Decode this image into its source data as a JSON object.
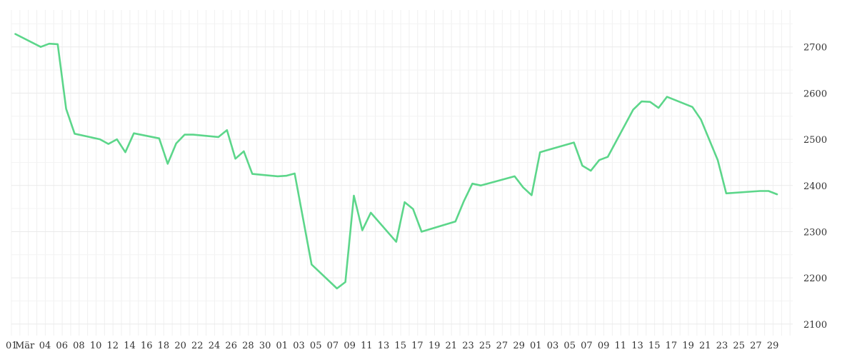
{
  "chart_data": {
    "type": "line",
    "title": "",
    "xlabel": "",
    "ylabel": "",
    "grid": true,
    "x_tick_labels": [
      "01",
      "Mär",
      "04",
      "06",
      "08",
      "10",
      "12",
      "14",
      "16",
      "18",
      "20",
      "22",
      "24",
      "26",
      "28",
      "30",
      "01",
      "03",
      "05",
      "07",
      "09",
      "11",
      "13",
      "15",
      "17",
      "19",
      "21",
      "23",
      "25",
      "27",
      "29",
      "01",
      "03",
      "05",
      "07",
      "09",
      "11",
      "13",
      "15",
      "17",
      "19",
      "21",
      "23",
      "25",
      "27",
      "29"
    ],
    "y_ticks": [
      2100,
      2200,
      2300,
      2400,
      2500,
      2600,
      2700
    ],
    "ylim": [
      2075,
      2780
    ],
    "x": [
      "2022-03-01",
      "2022-03-04",
      "2022-03-05",
      "2022-03-06",
      "2022-03-07",
      "2022-03-08",
      "2022-03-11",
      "2022-03-12",
      "2022-03-13",
      "2022-03-14",
      "2022-03-15",
      "2022-03-18",
      "2022-03-19",
      "2022-03-20",
      "2022-03-21",
      "2022-03-22",
      "2022-03-25",
      "2022-03-26",
      "2022-03-27",
      "2022-03-28",
      "2022-03-29",
      "2022-04-01",
      "2022-04-02",
      "2022-04-03",
      "2022-04-05",
      "2022-04-08",
      "2022-04-09",
      "2022-04-10",
      "2022-04-11",
      "2022-04-12",
      "2022-04-15",
      "2022-04-16",
      "2022-04-17",
      "2022-04-18",
      "2022-04-22",
      "2022-04-23",
      "2022-04-24",
      "2022-04-25",
      "2022-04-29",
      "2022-04-30",
      "2022-05-01",
      "2022-05-02",
      "2022-05-06",
      "2022-05-07",
      "2022-05-08",
      "2022-05-09",
      "2022-05-10",
      "2022-05-13",
      "2022-05-14",
      "2022-05-15",
      "2022-05-16",
      "2022-05-17",
      "2022-05-20",
      "2022-05-21",
      "2022-05-23",
      "2022-05-24",
      "2022-05-28",
      "2022-05-29",
      "2022-05-30"
    ],
    "series": [
      {
        "name": "",
        "color": "#5cd68a",
        "values": [
          2728,
          2700,
          2707,
          2706,
          2566,
          2512,
          2500,
          2490,
          2500,
          2472,
          2513,
          2502,
          2447,
          2491,
          2510,
          2510,
          2505,
          2520,
          2458,
          2474,
          2425,
          2420,
          2421,
          2426,
          2229,
          2177,
          2191,
          2378,
          2303,
          2341,
          2278,
          2364,
          2349,
          2300,
          2322,
          2366,
          2404,
          2400,
          2420,
          2396,
          2379,
          2472,
          2493,
          2443,
          2432,
          2455,
          2462,
          2564,
          2582,
          2581,
          2568,
          2592,
          2570,
          2543,
          2455,
          2383,
          2388,
          2388,
          2381
        ]
      }
    ]
  }
}
